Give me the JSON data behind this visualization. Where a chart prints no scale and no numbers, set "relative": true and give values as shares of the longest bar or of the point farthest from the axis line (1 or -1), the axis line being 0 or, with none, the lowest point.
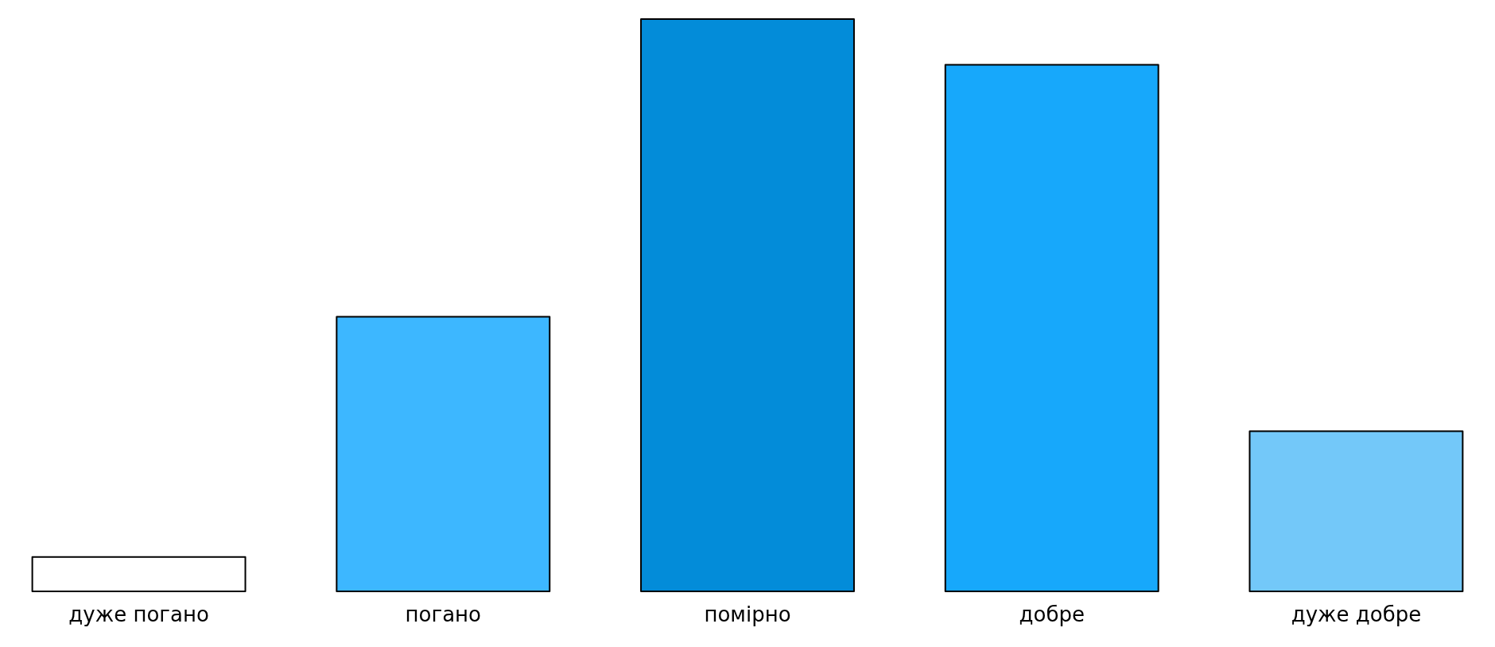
{
  "chart_data": {
    "type": "bar",
    "relative": true,
    "categories": [
      "дуже погано",
      "погано",
      "помірно",
      "добре",
      "дуже добре"
    ],
    "values": [
      0.06,
      0.48,
      1,
      0.92,
      0.28
    ],
    "colors": [
      "#ffffff",
      "#3db7ff",
      "#038cd9",
      "#17a8fb",
      "#73c8f9"
    ]
  }
}
